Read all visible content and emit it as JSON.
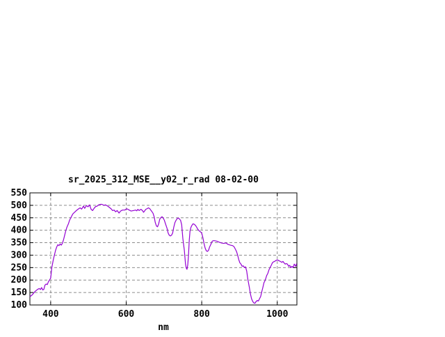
{
  "page": {
    "background": "#ffffff"
  },
  "chart_data": {
    "type": "line",
    "title": "sr_2025_312_MSE__y02_r_rad 08-02-00",
    "xlabel": "nm",
    "ylabel": "",
    "xlim": [
      345,
      1052
    ],
    "ylim": [
      100,
      550
    ],
    "xticks": [
      400,
      600,
      800,
      1000
    ],
    "yticks": [
      100,
      150,
      200,
      250,
      300,
      350,
      400,
      450,
      500,
      550
    ],
    "grid": true,
    "legend_position": "none",
    "line_color": "#9400d3",
    "grid_color": "#8c8c8c",
    "axis_color": "#000000",
    "series": [
      {
        "name": "sr_2025_312_MSE__y02_r_rad",
        "points": [
          [
            345,
            133
          ],
          [
            349,
            138
          ],
          [
            352,
            142
          ],
          [
            356,
            150
          ],
          [
            360,
            156
          ],
          [
            364,
            161
          ],
          [
            367,
            164
          ],
          [
            370,
            166
          ],
          [
            373,
            162
          ],
          [
            376,
            170
          ],
          [
            379,
            160
          ],
          [
            382,
            163
          ],
          [
            385,
            180
          ],
          [
            388,
            184
          ],
          [
            391,
            182
          ],
          [
            394,
            193
          ],
          [
            397,
            200
          ],
          [
            400,
            208
          ],
          [
            403,
            250
          ],
          [
            407,
            282
          ],
          [
            410,
            301
          ],
          [
            413,
            319
          ],
          [
            416,
            333
          ],
          [
            419,
            342
          ],
          [
            422,
            338
          ],
          [
            425,
            345
          ],
          [
            428,
            340
          ],
          [
            431,
            347
          ],
          [
            434,
            361
          ],
          [
            437,
            380
          ],
          [
            440,
            398
          ],
          [
            443,
            412
          ],
          [
            447,
            426
          ],
          [
            450,
            440
          ],
          [
            453,
            449
          ],
          [
            456,
            458
          ],
          [
            459,
            466
          ],
          [
            462,
            470
          ],
          [
            468,
            479
          ],
          [
            474,
            486
          ],
          [
            478,
            490
          ],
          [
            482,
            485
          ],
          [
            487,
            497
          ],
          [
            490,
            488
          ],
          [
            495,
            499
          ],
          [
            499,
            494
          ],
          [
            503,
            502
          ],
          [
            507,
            484
          ],
          [
            511,
            479
          ],
          [
            515,
            488
          ],
          [
            519,
            495
          ],
          [
            523,
            497
          ],
          [
            527,
            502
          ],
          [
            532,
            504
          ],
          [
            536,
            504
          ],
          [
            541,
            500
          ],
          [
            545,
            502
          ],
          [
            551,
            497
          ],
          [
            556,
            491
          ],
          [
            560,
            486
          ],
          [
            564,
            479
          ],
          [
            568,
            481
          ],
          [
            572,
            474
          ],
          [
            576,
            479
          ],
          [
            581,
            469
          ],
          [
            585,
            477
          ],
          [
            590,
            481
          ],
          [
            596,
            481
          ],
          [
            602,
            486
          ],
          [
            608,
            481
          ],
          [
            613,
            477
          ],
          [
            619,
            479
          ],
          [
            625,
            481
          ],
          [
            628,
            478
          ],
          [
            631,
            484
          ],
          [
            634,
            479
          ],
          [
            639,
            484
          ],
          [
            643,
            479
          ],
          [
            646,
            472
          ],
          [
            649,
            478
          ],
          [
            652,
            484
          ],
          [
            656,
            487
          ],
          [
            659,
            490
          ],
          [
            662,
            487
          ],
          [
            665,
            481
          ],
          [
            668,
            475
          ],
          [
            671,
            468
          ],
          [
            674,
            454
          ],
          [
            677,
            431
          ],
          [
            680,
            417
          ],
          [
            683,
            414
          ],
          [
            686,
            426
          ],
          [
            689,
            445
          ],
          [
            692,
            451
          ],
          [
            695,
            454
          ],
          [
            698,
            449
          ],
          [
            701,
            440
          ],
          [
            704,
            426
          ],
          [
            708,
            408
          ],
          [
            711,
            389
          ],
          [
            714,
            380
          ],
          [
            717,
            377
          ],
          [
            720,
            380
          ],
          [
            723,
            389
          ],
          [
            726,
            412
          ],
          [
            729,
            431
          ],
          [
            732,
            440
          ],
          [
            735,
            447
          ],
          [
            738,
            449
          ],
          [
            741,
            445
          ],
          [
            744,
            440
          ],
          [
            747,
            422
          ],
          [
            750,
            366
          ],
          [
            754,
            320
          ],
          [
            757,
            264
          ],
          [
            759,
            248
          ],
          [
            761,
            243
          ],
          [
            763,
            260
          ],
          [
            765,
            300
          ],
          [
            767,
            360
          ],
          [
            769,
            397
          ],
          [
            771,
            410
          ],
          [
            773,
            417
          ],
          [
            775,
            422
          ],
          [
            777,
            426
          ],
          [
            780,
            424
          ],
          [
            783,
            420
          ],
          [
            786,
            414
          ],
          [
            789,
            405
          ],
          [
            793,
            398
          ],
          [
            797,
            393
          ],
          [
            800,
            389
          ],
          [
            803,
            370
          ],
          [
            806,
            347
          ],
          [
            809,
            329
          ],
          [
            812,
            318
          ],
          [
            815,
            315
          ],
          [
            818,
            319
          ],
          [
            821,
            333
          ],
          [
            824,
            343
          ],
          [
            827,
            354
          ],
          [
            830,
            358
          ],
          [
            834,
            358
          ],
          [
            840,
            356
          ],
          [
            846,
            352
          ],
          [
            852,
            349
          ],
          [
            858,
            347
          ],
          [
            864,
            349
          ],
          [
            870,
            343
          ],
          [
            876,
            340
          ],
          [
            882,
            338
          ],
          [
            886,
            333
          ],
          [
            889,
            324
          ],
          [
            892,
            315
          ],
          [
            895,
            301
          ],
          [
            898,
            282
          ],
          [
            901,
            269
          ],
          [
            904,
            264
          ],
          [
            907,
            255
          ],
          [
            910,
            257
          ],
          [
            913,
            250
          ],
          [
            916,
            253
          ],
          [
            919,
            236
          ],
          [
            922,
            204
          ],
          [
            926,
            171
          ],
          [
            929,
            144
          ],
          [
            932,
            125
          ],
          [
            935,
            114
          ],
          [
            938,
            108
          ],
          [
            941,
            107
          ],
          [
            944,
            114
          ],
          [
            947,
            118
          ],
          [
            950,
            116
          ],
          [
            953,
            125
          ],
          [
            956,
            134
          ],
          [
            959,
            153
          ],
          [
            962,
            171
          ],
          [
            965,
            190
          ],
          [
            968,
            199
          ],
          [
            972,
            218
          ],
          [
            975,
            227
          ],
          [
            978,
            241
          ],
          [
            981,
            250
          ],
          [
            984,
            259
          ],
          [
            987,
            269
          ],
          [
            990,
            273
          ],
          [
            993,
            275
          ],
          [
            996,
            278
          ],
          [
            1000,
            281
          ],
          [
            1004,
            278
          ],
          [
            1008,
            275
          ],
          [
            1012,
            271
          ],
          [
            1015,
            275
          ],
          [
            1018,
            269
          ],
          [
            1021,
            264
          ],
          [
            1024,
            266
          ],
          [
            1027,
            264
          ],
          [
            1030,
            255
          ],
          [
            1033,
            259
          ],
          [
            1036,
            250
          ],
          [
            1039,
            255
          ],
          [
            1042,
            250
          ],
          [
            1045,
            264
          ],
          [
            1047,
            259
          ],
          [
            1049,
            255
          ],
          [
            1051,
            266
          ]
        ]
      }
    ]
  }
}
